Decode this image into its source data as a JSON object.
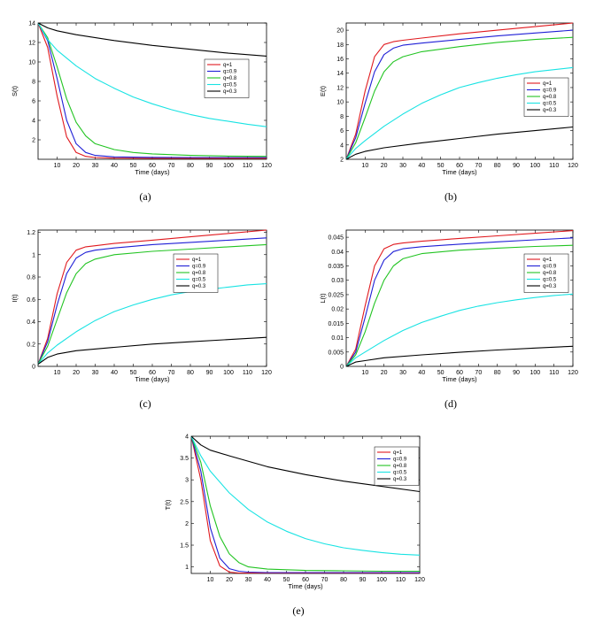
{
  "chart_data": [
    {
      "type": "line",
      "panel": "a",
      "caption": "(a)",
      "xlabel": "Time (days)",
      "ylabel": "S(t)",
      "xlim": [
        0,
        120
      ],
      "ylim": [
        0,
        14
      ],
      "xticks": [
        10,
        20,
        30,
        40,
        50,
        60,
        70,
        80,
        90,
        100,
        110,
        120
      ],
      "yticks": [
        2,
        4,
        6,
        8,
        10,
        12,
        14
      ],
      "legend_position": "upper-right",
      "series": [
        {
          "name": "q=1",
          "color": "#e0191e",
          "x": [
            0,
            5,
            10,
            15,
            20,
            25,
            30,
            40,
            60,
            80,
            100,
            120
          ],
          "values": [
            14,
            11.5,
            6.5,
            2.3,
            0.7,
            0.3,
            0.18,
            0.12,
            0.1,
            0.1,
            0.1,
            0.1
          ]
        },
        {
          "name": "q=0.9",
          "color": "#1f1fd6",
          "x": [
            0,
            5,
            10,
            15,
            20,
            25,
            30,
            40,
            60,
            80,
            100,
            120
          ],
          "values": [
            14,
            12.2,
            8.3,
            4.0,
            1.6,
            0.7,
            0.4,
            0.25,
            0.2,
            0.18,
            0.18,
            0.18
          ]
        },
        {
          "name": "q=0.8",
          "color": "#22c422",
          "x": [
            0,
            5,
            10,
            15,
            20,
            25,
            30,
            40,
            50,
            60,
            80,
            100,
            120
          ],
          "values": [
            14,
            12.5,
            9.5,
            6.2,
            3.8,
            2.4,
            1.6,
            1.0,
            0.7,
            0.55,
            0.4,
            0.33,
            0.3
          ]
        },
        {
          "name": "q=0.5",
          "color": "#19e3e3",
          "x": [
            0,
            5,
            10,
            20,
            30,
            40,
            50,
            60,
            70,
            80,
            90,
            100,
            110,
            120
          ],
          "values": [
            14,
            12.3,
            11.2,
            9.6,
            8.3,
            7.3,
            6.4,
            5.7,
            5.1,
            4.6,
            4.2,
            3.9,
            3.6,
            3.35
          ]
        },
        {
          "name": "q=0.3",
          "color": "#000000",
          "x": [
            0,
            5,
            10,
            20,
            40,
            60,
            80,
            100,
            120
          ],
          "values": [
            14,
            13.5,
            13.2,
            12.8,
            12.2,
            11.7,
            11.3,
            10.9,
            10.6
          ]
        }
      ]
    },
    {
      "type": "line",
      "panel": "b",
      "caption": "(b)",
      "xlabel": "Time (days)",
      "ylabel": "E(t)",
      "xlim": [
        0,
        120
      ],
      "ylim": [
        2,
        21
      ],
      "xticks": [
        10,
        20,
        30,
        40,
        50,
        60,
        70,
        80,
        90,
        100,
        110,
        120
      ],
      "yticks": [
        2,
        4,
        6,
        8,
        10,
        12,
        14,
        16,
        18,
        20
      ],
      "legend_position": "lower-right",
      "series": [
        {
          "name": "q=1",
          "color": "#e0191e",
          "x": [
            0,
            5,
            10,
            15,
            20,
            25,
            30,
            40,
            60,
            80,
            100,
            120
          ],
          "values": [
            2,
            5.5,
            11.5,
            16.3,
            18.0,
            18.4,
            18.6,
            18.9,
            19.5,
            20.0,
            20.5,
            21.0
          ]
        },
        {
          "name": "q=0.9",
          "color": "#1f1fd6",
          "x": [
            0,
            5,
            10,
            15,
            20,
            25,
            30,
            40,
            60,
            80,
            100,
            120
          ],
          "values": [
            2,
            5.0,
            9.8,
            14.2,
            16.6,
            17.5,
            17.9,
            18.2,
            18.7,
            19.2,
            19.6,
            20.0
          ]
        },
        {
          "name": "q=0.8",
          "color": "#22c422",
          "x": [
            0,
            5,
            10,
            15,
            20,
            25,
            30,
            40,
            60,
            80,
            100,
            120
          ],
          "values": [
            2,
            4.3,
            7.8,
            11.5,
            14.2,
            15.6,
            16.3,
            17.0,
            17.7,
            18.3,
            18.7,
            19.0
          ]
        },
        {
          "name": "q=0.5",
          "color": "#19e3e3",
          "x": [
            0,
            5,
            10,
            20,
            30,
            40,
            50,
            60,
            70,
            80,
            90,
            100,
            110,
            120
          ],
          "values": [
            2,
            3.5,
            4.6,
            6.6,
            8.3,
            9.8,
            11.0,
            12.0,
            12.7,
            13.3,
            13.8,
            14.2,
            14.5,
            14.8
          ]
        },
        {
          "name": "q=0.3",
          "color": "#000000",
          "x": [
            0,
            5,
            10,
            20,
            40,
            60,
            80,
            100,
            120
          ],
          "values": [
            2,
            2.7,
            3.1,
            3.6,
            4.3,
            4.9,
            5.5,
            6.0,
            6.5
          ]
        }
      ]
    },
    {
      "type": "line",
      "panel": "c",
      "caption": "(c)",
      "xlabel": "Time (days)",
      "ylabel": "I(t)",
      "xlim": [
        0,
        120
      ],
      "ylim": [
        0,
        1.22
      ],
      "xticks": [
        10,
        20,
        30,
        40,
        50,
        60,
        70,
        80,
        90,
        100,
        110,
        120
      ],
      "yticks": [
        0,
        0.2,
        0.4,
        0.6,
        0.8,
        1,
        1.2
      ],
      "legend_position": "center-right",
      "series": [
        {
          "name": "q=1",
          "color": "#e0191e",
          "x": [
            0,
            5,
            10,
            15,
            20,
            25,
            30,
            40,
            60,
            80,
            100,
            120
          ],
          "values": [
            0.02,
            0.25,
            0.65,
            0.93,
            1.04,
            1.07,
            1.08,
            1.1,
            1.13,
            1.16,
            1.19,
            1.22
          ]
        },
        {
          "name": "q=0.9",
          "color": "#1f1fd6",
          "x": [
            0,
            5,
            10,
            15,
            20,
            25,
            30,
            40,
            60,
            80,
            100,
            120
          ],
          "values": [
            0.02,
            0.22,
            0.55,
            0.83,
            0.97,
            1.02,
            1.04,
            1.06,
            1.09,
            1.11,
            1.13,
            1.15
          ]
        },
        {
          "name": "q=0.8",
          "color": "#22c422",
          "x": [
            0,
            5,
            10,
            15,
            20,
            25,
            30,
            40,
            60,
            80,
            100,
            120
          ],
          "values": [
            0.02,
            0.18,
            0.42,
            0.66,
            0.83,
            0.92,
            0.96,
            1.0,
            1.03,
            1.05,
            1.07,
            1.09
          ]
        },
        {
          "name": "q=0.5",
          "color": "#19e3e3",
          "x": [
            0,
            5,
            10,
            20,
            30,
            40,
            50,
            60,
            70,
            80,
            90,
            100,
            110,
            120
          ],
          "values": [
            0.02,
            0.12,
            0.19,
            0.31,
            0.41,
            0.49,
            0.55,
            0.6,
            0.64,
            0.67,
            0.69,
            0.71,
            0.73,
            0.74
          ]
        },
        {
          "name": "q=0.3",
          "color": "#000000",
          "x": [
            0,
            5,
            10,
            20,
            40,
            60,
            80,
            100,
            120
          ],
          "values": [
            0.02,
            0.08,
            0.11,
            0.14,
            0.17,
            0.2,
            0.22,
            0.24,
            0.26
          ]
        }
      ]
    },
    {
      "type": "line",
      "panel": "d",
      "caption": "(d)",
      "xlabel": "Time (days)",
      "ylabel": "L(t)",
      "xlim": [
        0,
        120
      ],
      "ylim": [
        0,
        0.0475
      ],
      "xticks": [
        10,
        20,
        30,
        40,
        50,
        60,
        70,
        80,
        90,
        100,
        110,
        120
      ],
      "yticks": [
        0,
        0.005,
        0.01,
        0.015,
        0.02,
        0.025,
        0.03,
        0.035,
        0.04,
        0.045
      ],
      "legend_position": "center-right",
      "series": [
        {
          "name": "q=1",
          "color": "#e0191e",
          "x": [
            0,
            5,
            10,
            15,
            20,
            25,
            30,
            40,
            60,
            80,
            100,
            120
          ],
          "values": [
            0,
            0.006,
            0.021,
            0.035,
            0.041,
            0.0425,
            0.043,
            0.0436,
            0.0446,
            0.0455,
            0.0464,
            0.0473
          ]
        },
        {
          "name": "q=0.9",
          "color": "#1f1fd6",
          "x": [
            0,
            5,
            10,
            15,
            20,
            25,
            30,
            40,
            60,
            80,
            100,
            120
          ],
          "values": [
            0,
            0.005,
            0.017,
            0.03,
            0.037,
            0.04,
            0.041,
            0.0417,
            0.0426,
            0.0434,
            0.0441,
            0.0448
          ]
        },
        {
          "name": "q=0.8",
          "color": "#22c422",
          "x": [
            0,
            5,
            10,
            15,
            20,
            25,
            30,
            40,
            60,
            80,
            100,
            120
          ],
          "values": [
            0,
            0.004,
            0.012,
            0.022,
            0.03,
            0.035,
            0.0375,
            0.0393,
            0.0405,
            0.0412,
            0.0418,
            0.0422
          ]
        },
        {
          "name": "q=0.5",
          "color": "#19e3e3",
          "x": [
            0,
            5,
            10,
            20,
            30,
            40,
            50,
            60,
            70,
            80,
            90,
            100,
            110,
            120
          ],
          "values": [
            0,
            0.003,
            0.005,
            0.009,
            0.0125,
            0.0153,
            0.0175,
            0.0195,
            0.021,
            0.0222,
            0.0232,
            0.024,
            0.0247,
            0.0252
          ]
        },
        {
          "name": "q=0.3",
          "color": "#000000",
          "x": [
            0,
            5,
            10,
            20,
            40,
            60,
            80,
            100,
            120
          ],
          "values": [
            0,
            0.0015,
            0.002,
            0.003,
            0.004,
            0.0049,
            0.0057,
            0.0064,
            0.007
          ]
        }
      ]
    },
    {
      "type": "line",
      "panel": "e",
      "caption": "(e)",
      "xlabel": "Time (days)",
      "ylabel": "T(t)",
      "xlim": [
        0,
        120
      ],
      "ylim": [
        0.85,
        4
      ],
      "xticks": [
        10,
        20,
        30,
        40,
        50,
        60,
        70,
        80,
        90,
        100,
        110,
        120
      ],
      "yticks": [
        1,
        1.5,
        2,
        2.5,
        3,
        3.5,
        4
      ],
      "legend_position": "upper-right",
      "series": [
        {
          "name": "q=1",
          "color": "#e0191e",
          "x": [
            0,
            5,
            10,
            15,
            20,
            25,
            30,
            40,
            60,
            80,
            100,
            120
          ],
          "values": [
            4,
            3.0,
            1.6,
            1.02,
            0.88,
            0.86,
            0.86,
            0.86,
            0.86,
            0.86,
            0.86,
            0.86
          ]
        },
        {
          "name": "q=0.9",
          "color": "#1f1fd6",
          "x": [
            0,
            5,
            10,
            15,
            20,
            25,
            30,
            40,
            60,
            80,
            100,
            120
          ],
          "values": [
            4,
            3.2,
            1.9,
            1.2,
            0.96,
            0.9,
            0.88,
            0.87,
            0.87,
            0.87,
            0.87,
            0.87
          ]
        },
        {
          "name": "q=0.8",
          "color": "#22c422",
          "x": [
            0,
            5,
            10,
            15,
            20,
            25,
            30,
            40,
            60,
            80,
            100,
            120
          ],
          "values": [
            4,
            3.4,
            2.4,
            1.7,
            1.3,
            1.1,
            1.0,
            0.95,
            0.92,
            0.91,
            0.9,
            0.9
          ]
        },
        {
          "name": "q=0.5",
          "color": "#19e3e3",
          "x": [
            0,
            5,
            10,
            20,
            30,
            40,
            50,
            60,
            70,
            80,
            90,
            100,
            110,
            120
          ],
          "values": [
            4,
            3.55,
            3.2,
            2.7,
            2.32,
            2.03,
            1.82,
            1.65,
            1.53,
            1.44,
            1.38,
            1.33,
            1.29,
            1.27
          ]
        },
        {
          "name": "q=0.3",
          "color": "#000000",
          "x": [
            0,
            5,
            10,
            20,
            40,
            60,
            80,
            100,
            120
          ],
          "values": [
            4,
            3.8,
            3.68,
            3.55,
            3.3,
            3.12,
            2.97,
            2.85,
            2.73
          ]
        }
      ]
    }
  ]
}
